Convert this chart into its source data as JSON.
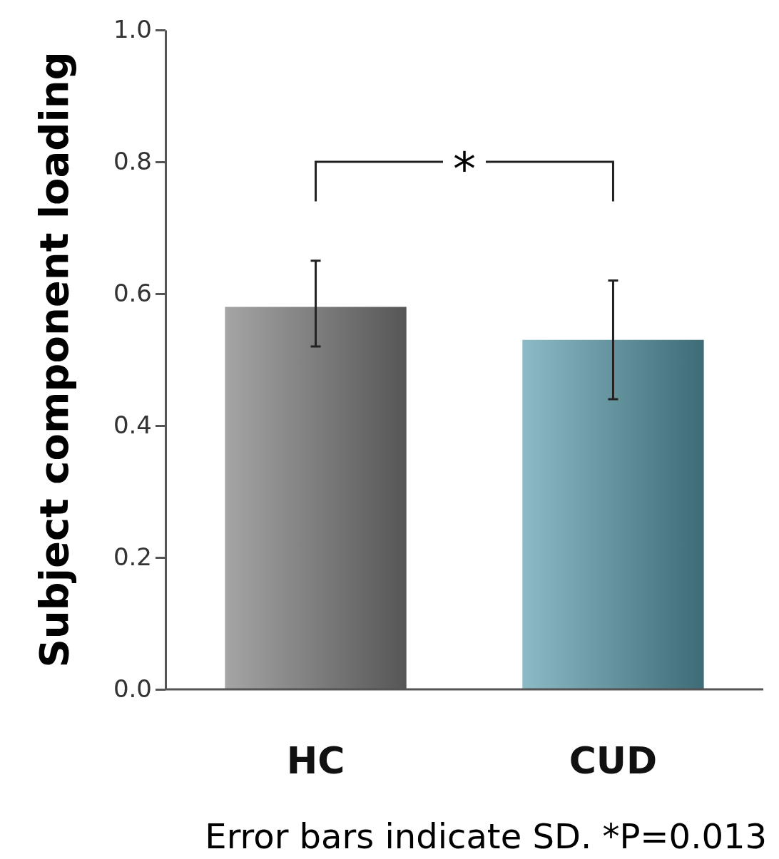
{
  "chart_data": {
    "type": "bar",
    "ylabel": "Subject component loading",
    "categories": [
      "HC",
      "CUD"
    ],
    "series": [
      {
        "values": [
          0.58,
          0.53
        ],
        "errors": [
          [
            0.52,
            0.65
          ],
          [
            0.44,
            0.62
          ]
        ],
        "colors": [
          "#7f7f7f",
          "#5b9eae"
        ]
      }
    ],
    "ylim": [
      0,
      1
    ],
    "yticks": [
      {
        "value": 0,
        "label": "0.0"
      },
      0.2,
      0.4,
      0.6,
      0.8,
      {
        "value": 1,
        "label": "1.0"
      }
    ],
    "annotations": [
      "*",
      "Error bars indicate SD. *P=0.013"
    ]
  }
}
